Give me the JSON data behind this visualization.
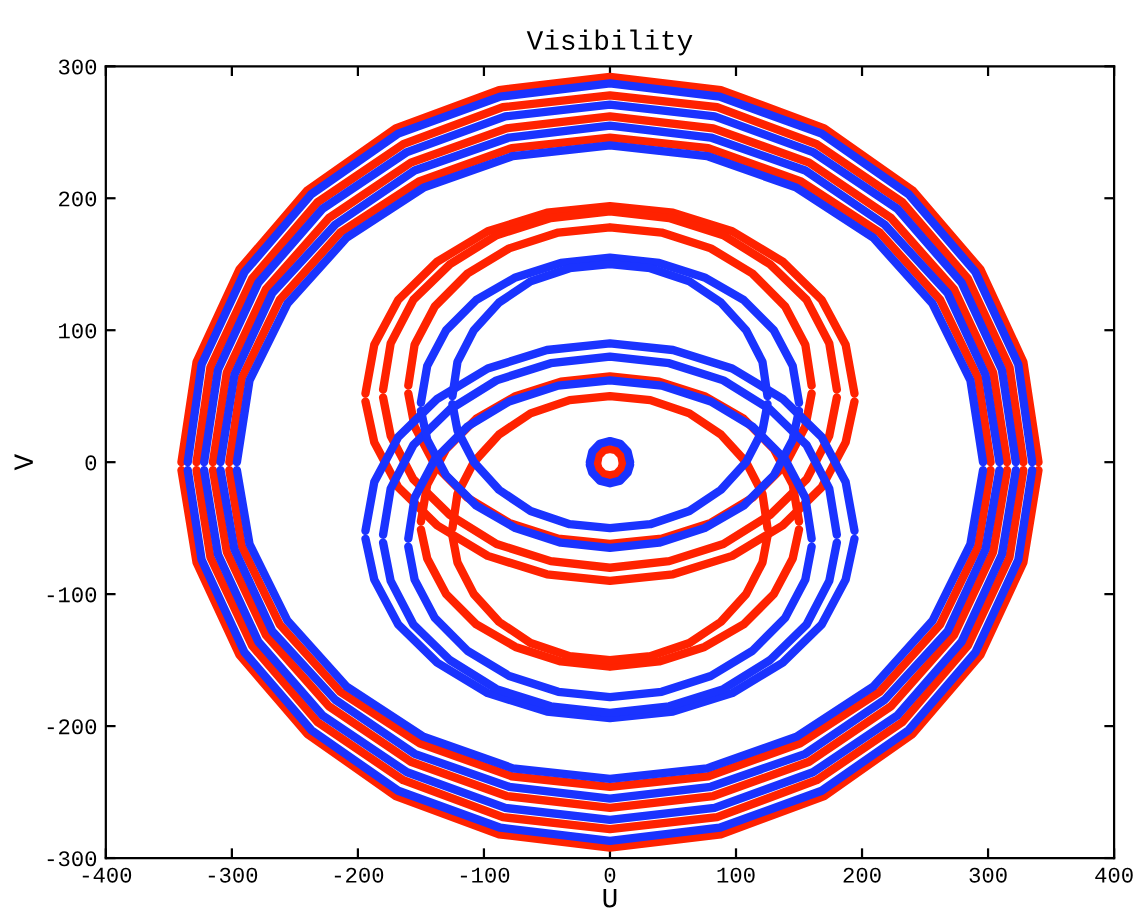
{
  "chart_data": {
    "type": "line",
    "title": "Visibility",
    "xlabel": "U",
    "ylabel": "V",
    "xlim": [
      -400,
      400
    ],
    "ylim": [
      -300,
      300
    ],
    "xticks": [
      -400,
      -300,
      -200,
      -100,
      0,
      100,
      200,
      300,
      400
    ],
    "yticks": [
      -300,
      -200,
      -100,
      0,
      100,
      200,
      300
    ],
    "grid": false,
    "legend": false,
    "marker": "none",
    "line_style": "solid",
    "series": [
      {
        "color": "#ff2200",
        "x": [
          -340,
          -328,
          -294,
          -240,
          -170,
          -88,
          0,
          88,
          170,
          240,
          294,
          328,
          340
        ],
        "values": [
          0,
          76,
          146,
          206,
          253,
          282,
          292,
          282,
          253,
          206,
          146,
          76,
          0
        ]
      },
      {
        "color": "#ff2200",
        "x": [
          -340,
          -328,
          -294,
          -240,
          -170,
          -88,
          0,
          88,
          170,
          240,
          294,
          328,
          340
        ],
        "values": [
          -6,
          -76,
          -146,
          -206,
          -253,
          -282,
          -292,
          -282,
          -253,
          -206,
          -146,
          -76,
          -6
        ]
      },
      {
        "color": "#ff2200",
        "x": [
          -328,
          -317,
          -284,
          -232,
          -164,
          -85,
          0,
          85,
          164,
          232,
          284,
          317,
          328
        ],
        "values": [
          0,
          72,
          139,
          197,
          241,
          269,
          278,
          269,
          241,
          197,
          139,
          72,
          0
        ]
      },
      {
        "color": "#ff2200",
        "x": [
          -328,
          -317,
          -284,
          -232,
          -164,
          -85,
          0,
          85,
          164,
          232,
          284,
          317,
          328
        ],
        "values": [
          -6,
          -72,
          -139,
          -197,
          -241,
          -269,
          -278,
          -269,
          -241,
          -197,
          -139,
          -72,
          -6
        ]
      },
      {
        "color": "#ff2200",
        "x": [
          -315,
          -304,
          -273,
          -223,
          -158,
          -82,
          0,
          82,
          158,
          223,
          273,
          304,
          315
        ],
        "values": [
          0,
          68,
          131,
          185,
          227,
          253,
          262,
          253,
          227,
          185,
          131,
          68,
          0
        ]
      },
      {
        "color": "#ff2200",
        "x": [
          -315,
          -304,
          -273,
          -223,
          -158,
          -82,
          0,
          82,
          158,
          223,
          273,
          304,
          315
        ],
        "values": [
          -6,
          -68,
          -131,
          -185,
          -227,
          -253,
          -262,
          -253,
          -227,
          -185,
          -131,
          -68,
          -6
        ]
      },
      {
        "color": "#ff2200",
        "x": [
          -302,
          -292,
          -262,
          -214,
          -151,
          -78,
          0,
          78,
          151,
          214,
          262,
          292,
          302
        ],
        "values": [
          0,
          64,
          123,
          174,
          213,
          238,
          246,
          238,
          213,
          174,
          123,
          64,
          0
        ]
      },
      {
        "color": "#ff2200",
        "x": [
          -302,
          -292,
          -262,
          -214,
          -151,
          -78,
          0,
          78,
          151,
          214,
          262,
          292,
          302
        ],
        "values": [
          -6,
          -64,
          -123,
          -174,
          -213,
          -238,
          -246,
          -238,
          -213,
          -174,
          -123,
          -64,
          -6
        ]
      },
      {
        "color": "#ff2200",
        "x": [
          -194,
          -187,
          -168,
          -137,
          -97,
          -50,
          0,
          50,
          97,
          137,
          168,
          187,
          194
        ],
        "values": [
          52,
          89,
          123,
          152,
          175,
          189,
          194,
          189,
          175,
          152,
          123,
          89,
          52
        ]
      },
      {
        "color": "#ff2200",
        "x": [
          -194,
          -187,
          -168,
          -137,
          -97,
          -50,
          0,
          50,
          97,
          137,
          168,
          187,
          194
        ],
        "values": [
          46,
          15,
          -19,
          -48,
          -71,
          -85,
          -90,
          -85,
          -71,
          -48,
          -19,
          15,
          46
        ]
      },
      {
        "color": "#ff2200",
        "x": [
          -180,
          -174,
          -156,
          -127,
          -90,
          -47,
          0,
          47,
          90,
          127,
          156,
          174,
          180
        ],
        "values": [
          55,
          90,
          123,
          150,
          172,
          185,
          190,
          185,
          172,
          150,
          123,
          90,
          55
        ]
      },
      {
        "color": "#ff2200",
        "x": [
          -180,
          -174,
          -156,
          -127,
          -90,
          -47,
          0,
          47,
          90,
          127,
          156,
          174,
          180
        ],
        "values": [
          49,
          20,
          -13,
          -40,
          -62,
          -75,
          -80,
          -75,
          -62,
          -40,
          -13,
          20,
          49
        ]
      },
      {
        "color": "#ff2200",
        "x": [
          -160,
          -155,
          -139,
          -113,
          -80,
          -41,
          0,
          41,
          80,
          113,
          139,
          155,
          160
        ],
        "values": [
          58,
          89,
          118,
          143,
          162,
          174,
          178,
          174,
          162,
          143,
          118,
          89,
          58
        ]
      },
      {
        "color": "#ff2200",
        "x": [
          -160,
          -155,
          -139,
          -113,
          -80,
          -41,
          0,
          41,
          80,
          113,
          139,
          155,
          160
        ],
        "values": [
          52,
          27,
          -2,
          -27,
          -46,
          -58,
          -62,
          -58,
          -46,
          -27,
          -2,
          27,
          52
        ]
      },
      {
        "color": "#ff2200",
        "x": [
          -150,
          -145,
          -130,
          -106,
          -75,
          -39,
          0,
          39,
          75,
          106,
          130,
          145,
          150
        ],
        "values": [
          -45,
          -17,
          10,
          33,
          50,
          61,
          65,
          61,
          50,
          33,
          10,
          -17,
          -45
        ]
      },
      {
        "color": "#ff2200",
        "x": [
          -150,
          -145,
          -130,
          -106,
          -75,
          -39,
          0,
          39,
          75,
          106,
          130,
          145,
          150
        ],
        "values": [
          -51,
          -73,
          -100,
          -123,
          -140,
          -151,
          -155,
          -151,
          -140,
          -123,
          -100,
          -73,
          -51
        ]
      },
      {
        "color": "#ff2200",
        "x": [
          -125,
          -121,
          -108,
          -88,
          -63,
          -32,
          0,
          32,
          63,
          88,
          108,
          121,
          125
        ],
        "values": [
          -50,
          -24,
          0,
          21,
          37,
          47,
          50,
          47,
          37,
          21,
          0,
          -24,
          -50
        ]
      },
      {
        "color": "#ff2200",
        "x": [
          -125,
          -121,
          -108,
          -88,
          -63,
          -32,
          0,
          32,
          63,
          88,
          108,
          121,
          125
        ],
        "values": [
          -56,
          -76,
          -100,
          -121,
          -137,
          -147,
          -150,
          -147,
          -137,
          -121,
          -100,
          -76,
          -56
        ]
      },
      {
        "color": "#ff2200",
        "x": [
          -10,
          -9,
          -5,
          0,
          5,
          9,
          10
        ],
        "values": [
          0,
          5,
          9,
          10,
          9,
          5,
          0
        ]
      },
      {
        "color": "#ff2200",
        "x": [
          -10,
          -9,
          -5,
          0,
          5,
          9,
          10
        ],
        "values": [
          -2,
          -5,
          -9,
          -10,
          -9,
          -5,
          -2
        ]
      },
      {
        "color": "#1a33ff",
        "x": [
          -335,
          -324,
          -290,
          -237,
          -168,
          -87,
          0,
          87,
          168,
          237,
          290,
          324,
          335
        ],
        "values": [
          0,
          74,
          144,
          203,
          249,
          277,
          287,
          277,
          249,
          203,
          144,
          74,
          0
        ]
      },
      {
        "color": "#1a33ff",
        "x": [
          -335,
          -324,
          -290,
          -237,
          -168,
          -87,
          0,
          87,
          168,
          237,
          290,
          324,
          335
        ],
        "values": [
          -6,
          -74,
          -144,
          -203,
          -249,
          -277,
          -287,
          -277,
          -249,
          -203,
          -144,
          -74,
          -6
        ]
      },
      {
        "color": "#1a33ff",
        "x": [
          -322,
          -311,
          -279,
          -228,
          -161,
          -83,
          0,
          83,
          161,
          228,
          279,
          311,
          322
        ],
        "values": [
          0,
          70,
          136,
          192,
          235,
          262,
          271,
          262,
          235,
          192,
          136,
          70,
          0
        ]
      },
      {
        "color": "#1a33ff",
        "x": [
          -322,
          -311,
          -279,
          -228,
          -161,
          -83,
          0,
          83,
          161,
          228,
          279,
          311,
          322
        ],
        "values": [
          -6,
          -70,
          -136,
          -192,
          -235,
          -262,
          -271,
          -262,
          -235,
          -192,
          -136,
          -70,
          -6
        ]
      },
      {
        "color": "#1a33ff",
        "x": [
          -309,
          -298,
          -268,
          -218,
          -155,
          -80,
          0,
          80,
          155,
          218,
          268,
          298,
          309
        ],
        "values": [
          0,
          66,
          128,
          180,
          221,
          246,
          255,
          246,
          221,
          180,
          128,
          66,
          0
        ]
      },
      {
        "color": "#1a33ff",
        "x": [
          -309,
          -298,
          -268,
          -218,
          -155,
          -80,
          0,
          80,
          155,
          218,
          268,
          298,
          309
        ],
        "values": [
          -6,
          -66,
          -128,
          -180,
          -221,
          -246,
          -255,
          -246,
          -221,
          -180,
          -128,
          -66,
          -6
        ]
      },
      {
        "color": "#1a33ff",
        "x": [
          -296,
          -286,
          -256,
          -209,
          -148,
          -77,
          0,
          77,
          148,
          209,
          256,
          286,
          296
        ],
        "values": [
          0,
          62,
          120,
          170,
          208,
          232,
          240,
          232,
          208,
          170,
          120,
          62,
          0
        ]
      },
      {
        "color": "#1a33ff",
        "x": [
          -296,
          -286,
          -256,
          -209,
          -148,
          -77,
          0,
          77,
          148,
          209,
          256,
          286,
          296
        ],
        "values": [
          -6,
          -62,
          -120,
          -170,
          -208,
          -232,
          -240,
          -232,
          -208,
          -170,
          -120,
          -62,
          -6
        ]
      },
      {
        "color": "#1a33ff",
        "x": [
          -194,
          -187,
          -168,
          -137,
          -97,
          -50,
          0,
          50,
          97,
          137,
          168,
          187,
          194
        ],
        "values": [
          -52,
          -15,
          19,
          48,
          71,
          85,
          90,
          85,
          71,
          48,
          19,
          -15,
          -52
        ]
      },
      {
        "color": "#1a33ff",
        "x": [
          -194,
          -187,
          -168,
          -137,
          -97,
          -50,
          0,
          50,
          97,
          137,
          168,
          187,
          194
        ],
        "values": [
          -58,
          -89,
          -123,
          -152,
          -175,
          -189,
          -194,
          -189,
          -175,
          -152,
          -123,
          -89,
          -58
        ]
      },
      {
        "color": "#1a33ff",
        "x": [
          -180,
          -174,
          -156,
          -127,
          -90,
          -47,
          0,
          47,
          90,
          127,
          156,
          174,
          180
        ],
        "values": [
          -55,
          -20,
          13,
          40,
          62,
          75,
          80,
          75,
          62,
          40,
          13,
          -20,
          -55
        ]
      },
      {
        "color": "#1a33ff",
        "x": [
          -180,
          -174,
          -156,
          -127,
          -90,
          -47,
          0,
          47,
          90,
          127,
          156,
          174,
          180
        ],
        "values": [
          -61,
          -90,
          -123,
          -150,
          -172,
          -185,
          -190,
          -185,
          -172,
          -150,
          -123,
          -90,
          -61
        ]
      },
      {
        "color": "#1a33ff",
        "x": [
          -160,
          -155,
          -139,
          -113,
          -80,
          -41,
          0,
          41,
          80,
          113,
          139,
          155,
          160
        ],
        "values": [
          -58,
          -27,
          2,
          27,
          46,
          58,
          62,
          58,
          46,
          27,
          2,
          -27,
          -58
        ]
      },
      {
        "color": "#1a33ff",
        "x": [
          -160,
          -155,
          -139,
          -113,
          -80,
          -41,
          0,
          41,
          80,
          113,
          139,
          155,
          160
        ],
        "values": [
          -64,
          -89,
          -118,
          -143,
          -162,
          -174,
          -178,
          -174,
          -162,
          -143,
          -118,
          -89,
          -64
        ]
      },
      {
        "color": "#1a33ff",
        "x": [
          -150,
          -145,
          -130,
          -106,
          -75,
          -39,
          0,
          39,
          75,
          106,
          130,
          145,
          150
        ],
        "values": [
          45,
          73,
          100,
          123,
          140,
          151,
          155,
          151,
          140,
          123,
          100,
          73,
          45
        ]
      },
      {
        "color": "#1a33ff",
        "x": [
          -150,
          -145,
          -130,
          -106,
          -75,
          -39,
          0,
          39,
          75,
          106,
          130,
          145,
          150
        ],
        "values": [
          39,
          17,
          -10,
          -33,
          -50,
          -61,
          -65,
          -61,
          -50,
          -33,
          -10,
          17,
          39
        ]
      },
      {
        "color": "#1a33ff",
        "x": [
          -125,
          -121,
          -108,
          -88,
          -63,
          -32,
          0,
          32,
          63,
          88,
          108,
          121,
          125
        ],
        "values": [
          50,
          76,
          100,
          121,
          137,
          147,
          150,
          147,
          137,
          121,
          100,
          76,
          50
        ]
      },
      {
        "color": "#1a33ff",
        "x": [
          -125,
          -121,
          -108,
          -88,
          -63,
          -32,
          0,
          32,
          63,
          88,
          108,
          121,
          125
        ],
        "values": [
          44,
          24,
          0,
          -21,
          -37,
          -47,
          -50,
          -47,
          -37,
          -21,
          0,
          24,
          44
        ]
      },
      {
        "color": "#1a33ff",
        "x": [
          -16,
          -14,
          -8,
          0,
          8,
          14,
          16
        ],
        "values": [
          0,
          8,
          14,
          16,
          14,
          8,
          0
        ]
      },
      {
        "color": "#1a33ff",
        "x": [
          -16,
          -14,
          -8,
          0,
          8,
          14,
          16
        ],
        "values": [
          -2,
          -8,
          -14,
          -16,
          -14,
          -8,
          -2
        ]
      }
    ]
  }
}
